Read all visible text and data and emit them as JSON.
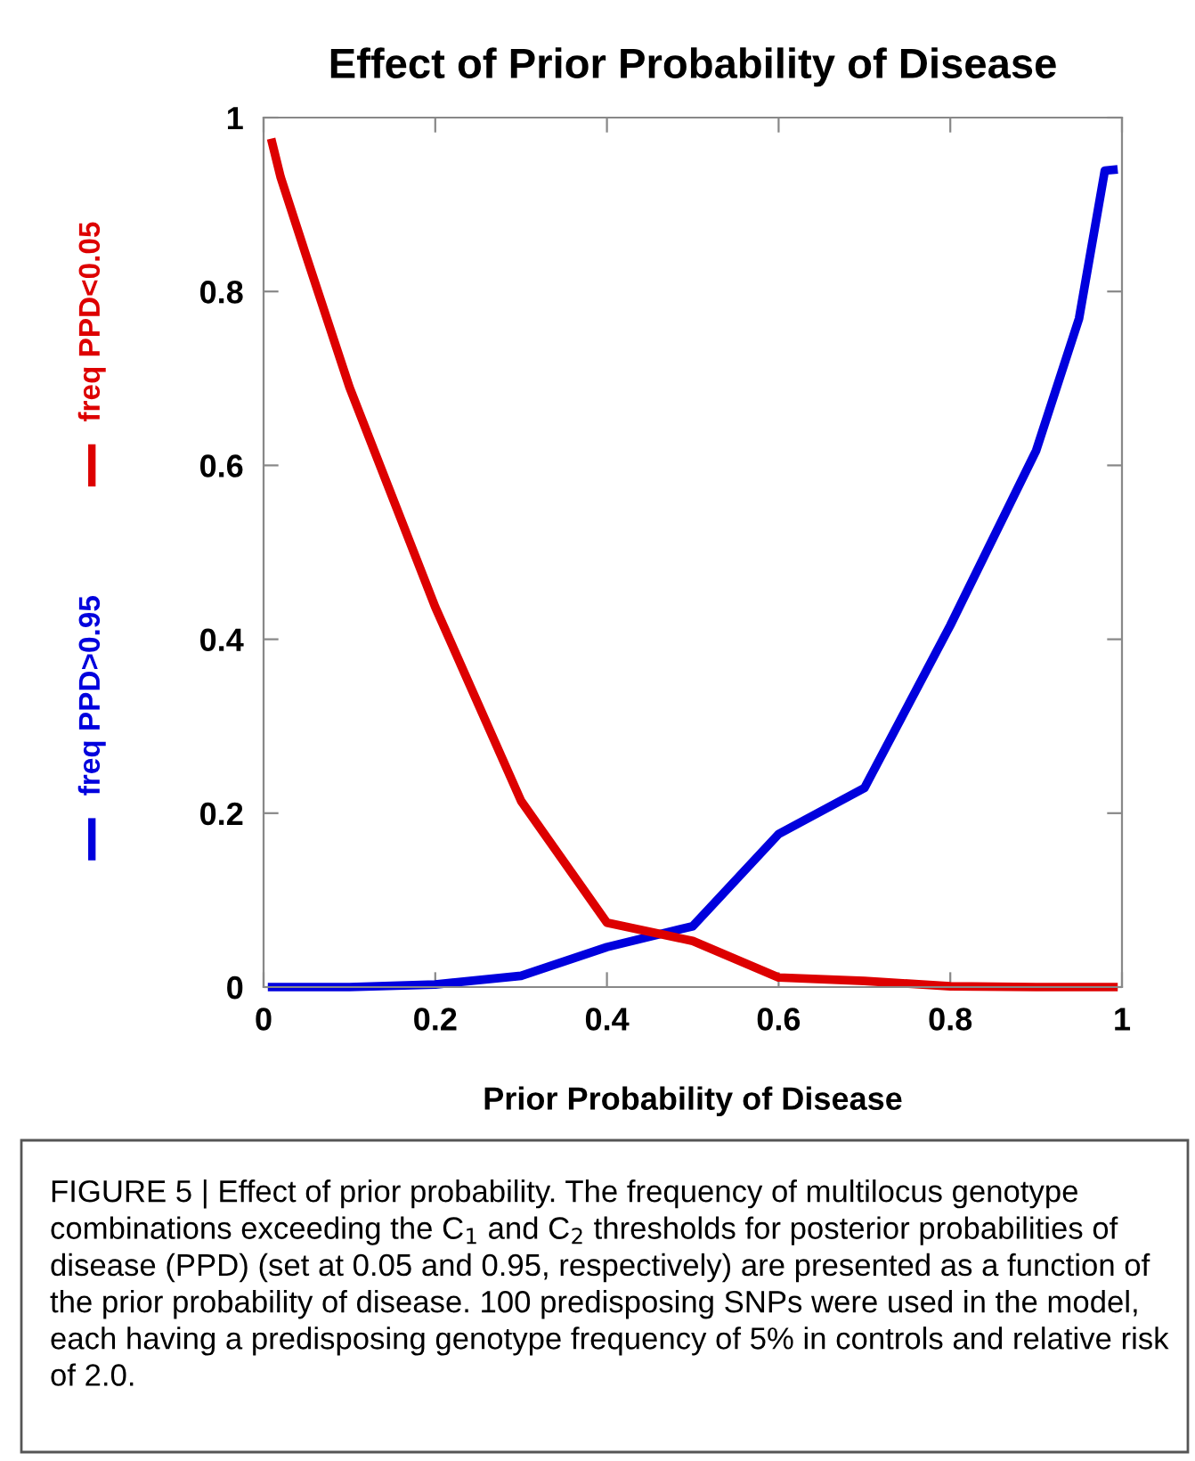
{
  "chart_data": {
    "type": "line",
    "title": "Effect of Prior Probability of Disease",
    "xlabel": "Prior Probability of Disease",
    "x": [
      0.01,
      0.02,
      0.05,
      0.1,
      0.2,
      0.3,
      0.4,
      0.5,
      0.6,
      0.7,
      0.8,
      0.9,
      0.95,
      0.98,
      0.99
    ],
    "series": [
      {
        "name": "freq PPD>0.95",
        "color": "#0000dd",
        "values": [
          0,
          0,
          0,
          0,
          0.003,
          0.013,
          0.046,
          0.07,
          0.176,
          0.229,
          0.416,
          0.617,
          0.769,
          0.939,
          0.94
        ]
      },
      {
        "name": "freq PPD<0.05",
        "color": "#dd0000",
        "values": [
          0.971,
          0.931,
          0.84,
          0.69,
          0.437,
          0.214,
          0.074,
          0.053,
          0.011,
          0.007,
          0.001,
          0,
          0,
          0,
          0
        ]
      }
    ],
    "xlim": [
      0,
      1
    ],
    "ylim": [
      0,
      1
    ],
    "xticks": [
      0,
      0.2,
      0.4,
      0.6,
      0.8,
      1
    ],
    "yticks": [
      0,
      0.2,
      0.4,
      0.6,
      0.8,
      1
    ],
    "grid": false,
    "legend": "left",
    "marker": "none",
    "line_style": "solid",
    "annotations": [
      "FIGURE 5 | Effect of prior probability. The frequency of multilocus genotype combinations exceeding the C$_{1}$ and C$_{2}$ thresholds for posterior probabilities of disease (PPD) (set at 0.05 and 0.95, respectively) are presented as a function of the prior probability of disease. 100 predisposing SNPs were used in the model, each having a predisposing genotype frequency of 5% in controls and relative risk of 2.0."
    ]
  }
}
